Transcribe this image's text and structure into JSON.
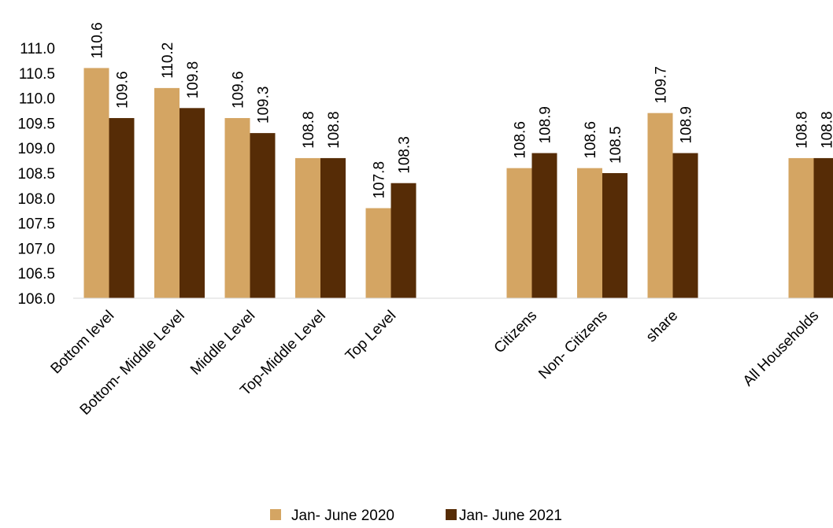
{
  "chart_data": {
    "type": "bar",
    "categories": [
      "Bottom level",
      "Bottom- Middle  Level",
      "Middle Level",
      "Top-Middle Level",
      "Top Level",
      "",
      "Citizens",
      "Non- Citizens",
      "share",
      "",
      "All Households"
    ],
    "series": [
      {
        "name": "Jan- June 2020",
        "color": "#d4a563",
        "values": [
          110.6,
          110.2,
          109.6,
          108.8,
          107.8,
          null,
          108.6,
          108.6,
          109.7,
          null,
          108.8
        ]
      },
      {
        "name": "Jan- June 2021",
        "color": "#562c06",
        "values": [
          109.6,
          109.8,
          109.3,
          108.8,
          108.3,
          null,
          108.9,
          108.5,
          108.9,
          null,
          108.8
        ]
      }
    ],
    "ylim": [
      106.0,
      111.0
    ],
    "yticks": [
      "106.0",
      "106.5",
      "107.0",
      "107.5",
      "108.0",
      "108.5",
      "109.0",
      "109.5",
      "110.0",
      "110.5",
      "111.0"
    ],
    "legend_position": "bottom",
    "grid": false
  }
}
